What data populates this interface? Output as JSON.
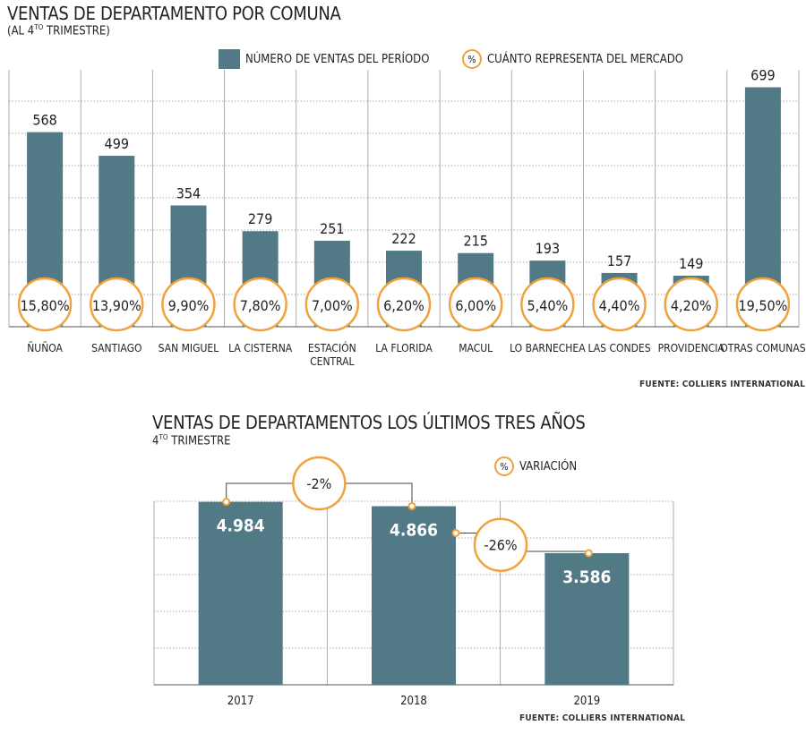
{
  "chart_data": [
    {
      "type": "bar",
      "title": "VENTAS DE DEPARTAMENTO POR COMUNA",
      "subtitle": "(AL 4TO TRIMESTRE)",
      "legend": [
        {
          "label": "NÚMERO DE VENTAS DEL PERÍODO",
          "color": "#527a86"
        },
        {
          "label": "CUÁNTO REPRESENTA DEL MERCADO",
          "symbol": "%",
          "color": "#f0a23c"
        }
      ],
      "categories": [
        "ÑUÑOA",
        "SANTIAGO",
        "SAN MIGUEL",
        "LA CISTERNA",
        "ESTACIÓN CENTRAL",
        "LA FLORIDA",
        "MACUL",
        "LO BARNECHEA",
        "LAS CONDES",
        "PROVIDENCIA",
        "OTRAS COMUNAS"
      ],
      "series": [
        {
          "name": "NÚMERO DE VENTAS DEL PERÍODO",
          "values": [
            568,
            499,
            354,
            279,
            251,
            222,
            215,
            193,
            157,
            149,
            699
          ]
        },
        {
          "name": "CUÁNTO REPRESENTA DEL MERCADO",
          "values": [
            "15,80%",
            "13,90%",
            "9,90%",
            "7,80%",
            "7,00%",
            "6,20%",
            "6,00%",
            "5,40%",
            "4,40%",
            "4,20%",
            "19,50%"
          ]
        }
      ],
      "value_labels": [
        "568",
        "499",
        "354",
        "279",
        "251",
        "222",
        "215",
        "193",
        "157",
        "149",
        "699"
      ],
      "ylim": [
        0,
        750
      ],
      "grid": true,
      "source": "FUENTE: COLLIERS INTERNATIONAL",
      "bar_color": "#527a86",
      "accent_color": "#f0a23c"
    },
    {
      "type": "bar",
      "title": "VENTAS  DE DEPARTAMENTOS LOS ÚLTIMOS TRES AÑOS",
      "subtitle": "4TO TRIMESTRE",
      "legend": [
        {
          "label": "VARIACIÓN",
          "symbol": "%",
          "color": "#f0a23c"
        }
      ],
      "categories": [
        "2017",
        "2018",
        "2019"
      ],
      "values": [
        4984,
        4866,
        3586
      ],
      "value_labels": [
        "4.984",
        "4.866",
        "3.586"
      ],
      "variations": [
        {
          "from": "2017",
          "to": "2018",
          "label": "-2%"
        },
        {
          "from": "2018",
          "to": "2019",
          "label": "-26%"
        }
      ],
      "ylim": [
        0,
        5000
      ],
      "grid": true,
      "source": "FUENTE: COLLIERS INTERNATIONAL",
      "bar_color": "#527a86",
      "accent_color": "#f0a23c"
    }
  ]
}
